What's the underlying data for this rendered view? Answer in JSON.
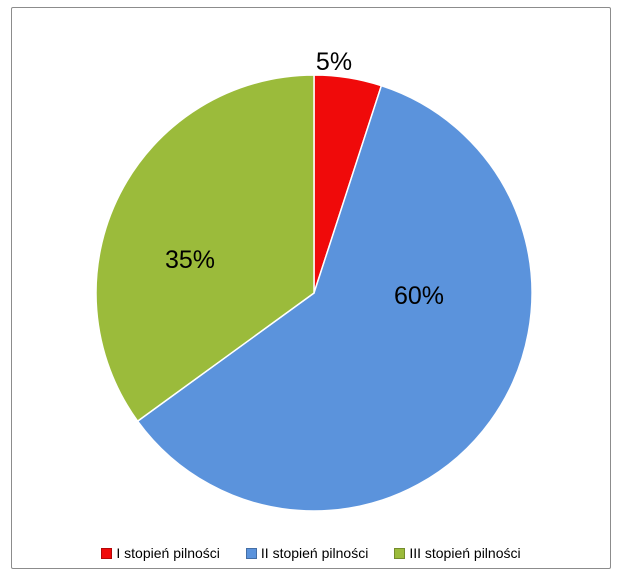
{
  "chart_data": {
    "type": "pie",
    "title": "",
    "categories": [
      "I stopień pilności",
      "II stopień pilności",
      "III stopień pilności"
    ],
    "values": [
      5,
      60,
      35
    ],
    "labels": [
      "5%",
      "60%",
      "35%"
    ],
    "colors": [
      "#f00a0a",
      "#5b93dc",
      "#9bbb3b"
    ],
    "start_angle_deg": 0,
    "direction": "clockwise",
    "legend_position": "bottom"
  },
  "legend": {
    "items": [
      {
        "label": "I stopień pilności",
        "color": "#f00a0a"
      },
      {
        "label": "II stopień pilności",
        "color": "#5b93dc"
      },
      {
        "label": "III stopień pilności",
        "color": "#9bbb3b"
      }
    ]
  }
}
